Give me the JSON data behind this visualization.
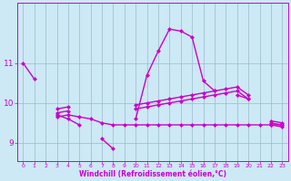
{
  "x": [
    0,
    1,
    2,
    3,
    4,
    5,
    6,
    7,
    8,
    9,
    10,
    11,
    12,
    13,
    14,
    15,
    16,
    17,
    18,
    19,
    20,
    21,
    22,
    23
  ],
  "line1": [
    11.0,
    10.6,
    null,
    9.7,
    9.6,
    9.45,
    null,
    9.1,
    8.85,
    null,
    9.6,
    10.7,
    11.3,
    11.85,
    11.8,
    11.65,
    10.55,
    10.3,
    null,
    10.2,
    10.1,
    null,
    9.45,
    9.4
  ],
  "line2": [
    null,
    null,
    null,
    9.65,
    9.7,
    9.65,
    9.6,
    9.5,
    9.45,
    9.45,
    9.45,
    9.45,
    9.45,
    9.45,
    9.45,
    9.45,
    9.45,
    9.45,
    9.45,
    9.45,
    9.45,
    9.45,
    9.45,
    9.45
  ],
  "line3": [
    null,
    null,
    null,
    9.75,
    9.8,
    null,
    null,
    null,
    null,
    null,
    9.85,
    9.9,
    9.95,
    10.0,
    10.05,
    10.1,
    10.15,
    10.2,
    10.25,
    10.3,
    10.1,
    null,
    9.5,
    9.45
  ],
  "line4": [
    null,
    null,
    null,
    9.85,
    9.9,
    null,
    null,
    null,
    null,
    null,
    9.95,
    10.0,
    10.05,
    10.1,
    10.15,
    10.2,
    10.25,
    10.3,
    10.35,
    10.4,
    10.2,
    null,
    9.55,
    9.5
  ],
  "bg_color": "#cce9f5",
  "line_color": "#cc00cc",
  "grid_color": "#99bbcc",
  "xlabel": "Windchill (Refroidissement éolien,°C)",
  "ylim": [
    8.55,
    12.5
  ],
  "xlim": [
    -0.5,
    23.5
  ],
  "yticks": [
    9,
    10,
    11
  ],
  "xticks": [
    0,
    1,
    2,
    3,
    4,
    5,
    6,
    7,
    8,
    9,
    10,
    11,
    12,
    13,
    14,
    15,
    16,
    17,
    18,
    19,
    20,
    21,
    22,
    23
  ]
}
